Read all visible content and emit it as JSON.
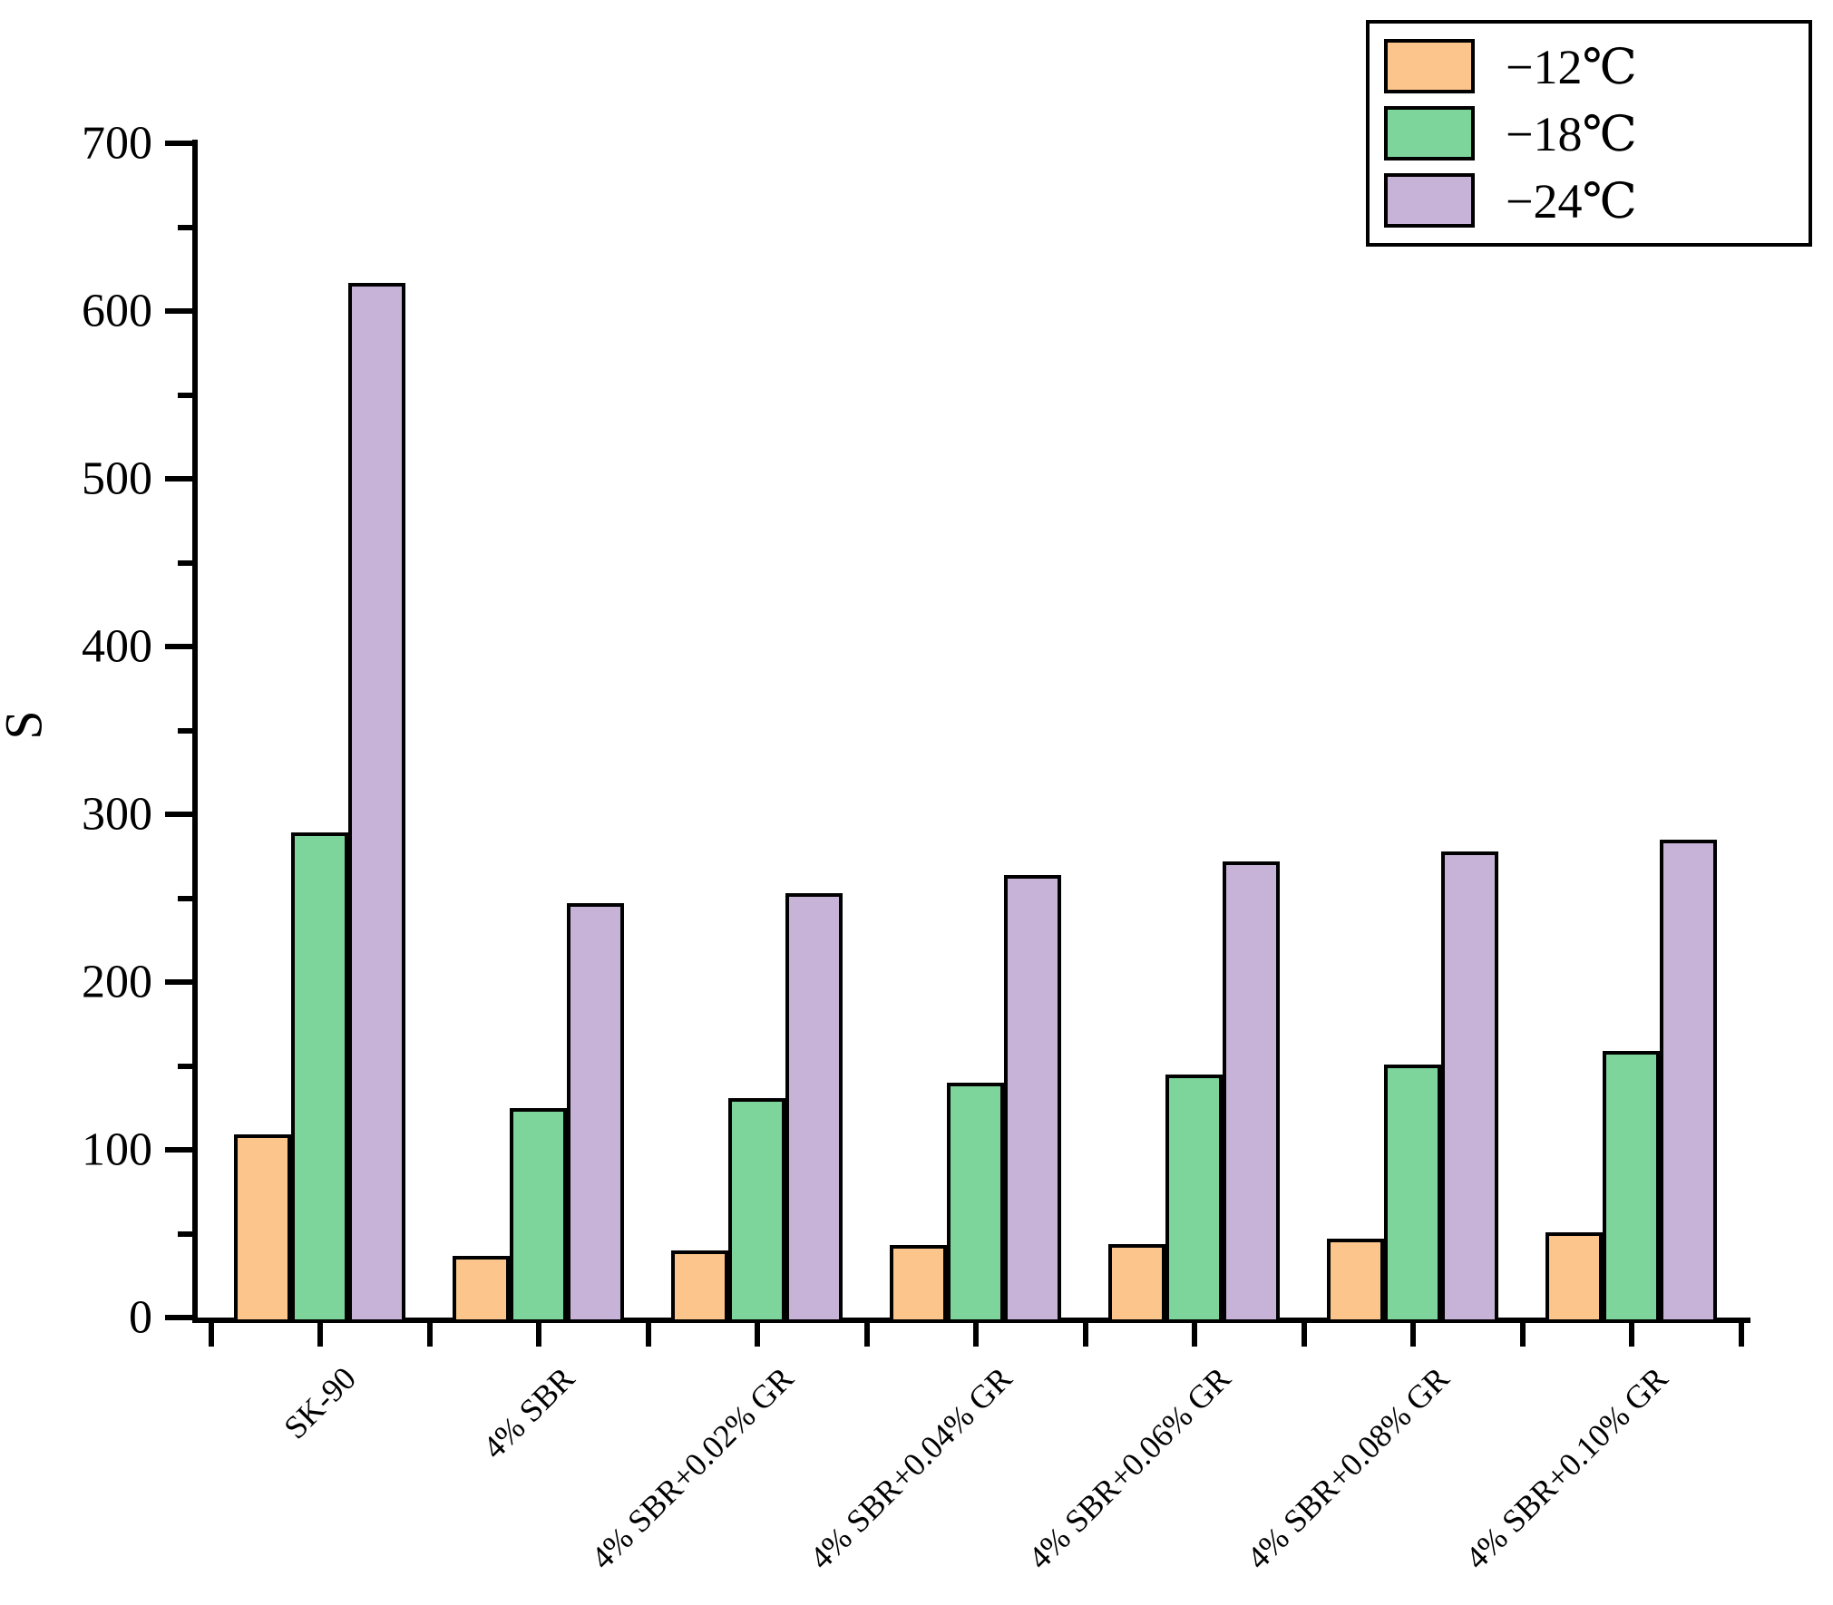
{
  "chart_data": {
    "type": "bar",
    "title": "",
    "xlabel": "",
    "ylabel": "S",
    "ylim": [
      0,
      700
    ],
    "yticks": [
      0,
      100,
      200,
      300,
      400,
      500,
      600,
      700
    ],
    "minor_ytick_step": 50,
    "grid": false,
    "legend_position": "top-right",
    "categories": [
      "SK-90",
      "4% SBR",
      "4% SBR+0.02% GR",
      "4% SBR+0.04% GR",
      "4% SBR+0.06% GR",
      "4% SBR+0.08% GR",
      "4% SBR+0.10% GR"
    ],
    "series": [
      {
        "name": "−12℃",
        "color": "#FCC58B",
        "values": [
          109,
          37,
          40,
          43,
          44,
          47,
          51
        ]
      },
      {
        "name": "−18℃",
        "color": "#7ED59C",
        "values": [
          289,
          125,
          131,
          140,
          145,
          151,
          159
        ]
      },
      {
        "name": "−24℃",
        "color": "#C7B2D8",
        "values": [
          617,
          247,
          253,
          264,
          272,
          278,
          285
        ]
      }
    ],
    "bar_edge_color": "#000000"
  }
}
